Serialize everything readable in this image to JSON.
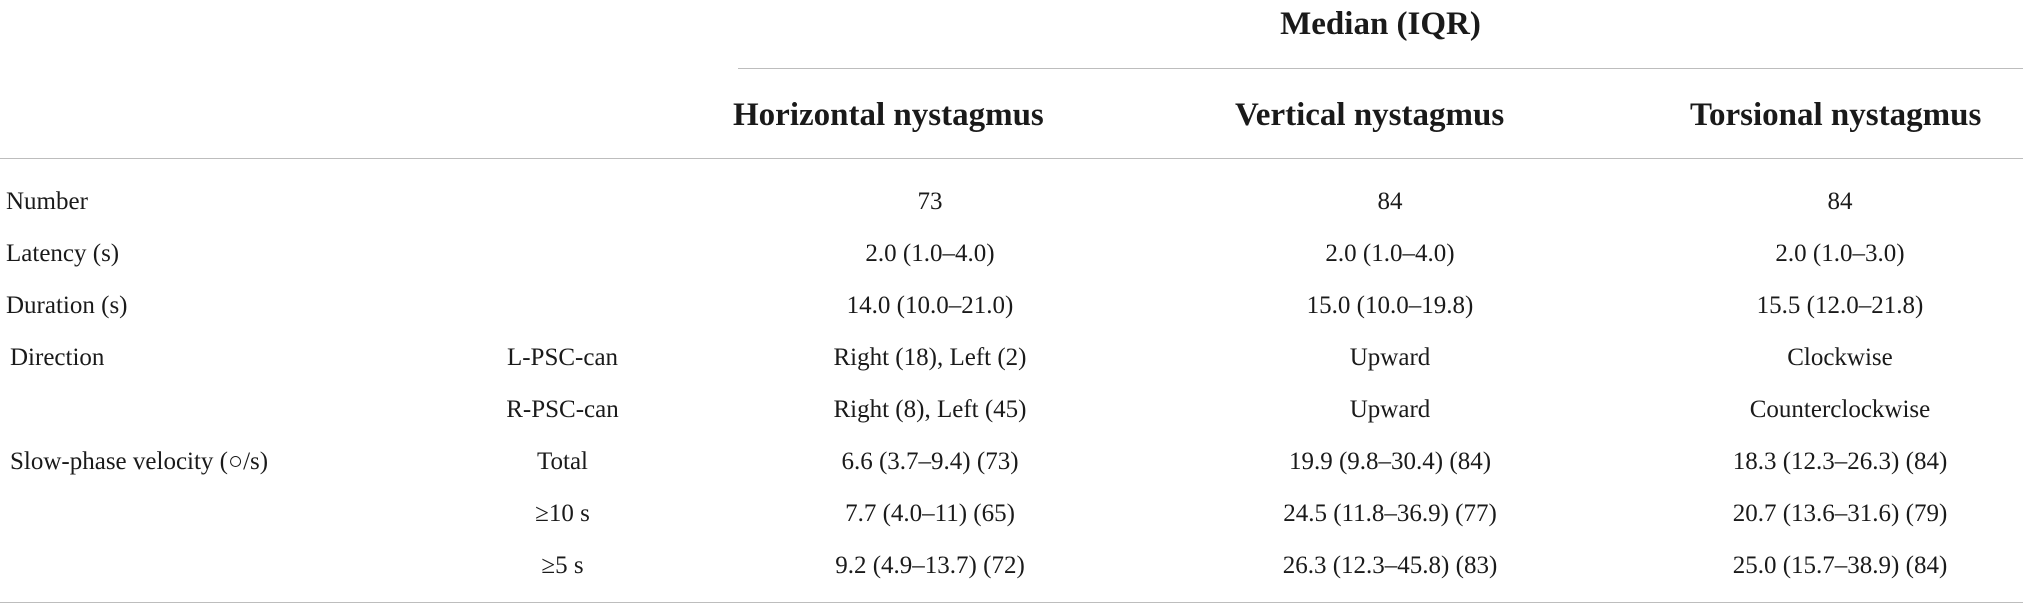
{
  "table": {
    "group_header": "Median (IQR)",
    "columns": [
      "Horizontal nystagmus",
      "Vertical nystagmus",
      "Torsional nystagmus"
    ],
    "rows": [
      {
        "label": "Number",
        "sub": "",
        "values": [
          "73",
          "84",
          "84"
        ]
      },
      {
        "label": "Latency (s)",
        "sub": "",
        "values": [
          "2.0 (1.0–4.0)",
          "2.0 (1.0–4.0)",
          "2.0 (1.0–3.0)"
        ]
      },
      {
        "label": "Duration (s)",
        "sub": "",
        "values": [
          "14.0 (10.0–21.0)",
          "15.0 (10.0–19.8)",
          "15.5 (12.0–21.8)"
        ]
      },
      {
        "label": "Direction",
        "sub": "L-PSC-can",
        "values": [
          "Right (18), Left (2)",
          "Upward",
          "Clockwise"
        ]
      },
      {
        "label": "",
        "sub": "R-PSC-can",
        "values": [
          "Right (8), Left (45)",
          "Upward",
          "Counterclockwise"
        ]
      },
      {
        "label": "Slow-phase velocity (○/s)",
        "sub": "Total",
        "values": [
          "6.6 (3.7–9.4) (73)",
          "19.9 (9.8–30.4) (84)",
          "18.3 (12.3–26.3) (84)"
        ]
      },
      {
        "label": "",
        "sub": "≥10 s",
        "values": [
          "7.7 (4.0–11) (65)",
          "24.5 (11.8–36.9) (77)",
          "20.7 (13.6–31.6) (79)"
        ]
      },
      {
        "label": "",
        "sub": "≥5 s",
        "values": [
          "9.2 (4.9–13.7) (72)",
          "26.3 (12.3–45.8) (83)",
          "25.0 (15.7–38.9) (84)"
        ]
      }
    ]
  }
}
